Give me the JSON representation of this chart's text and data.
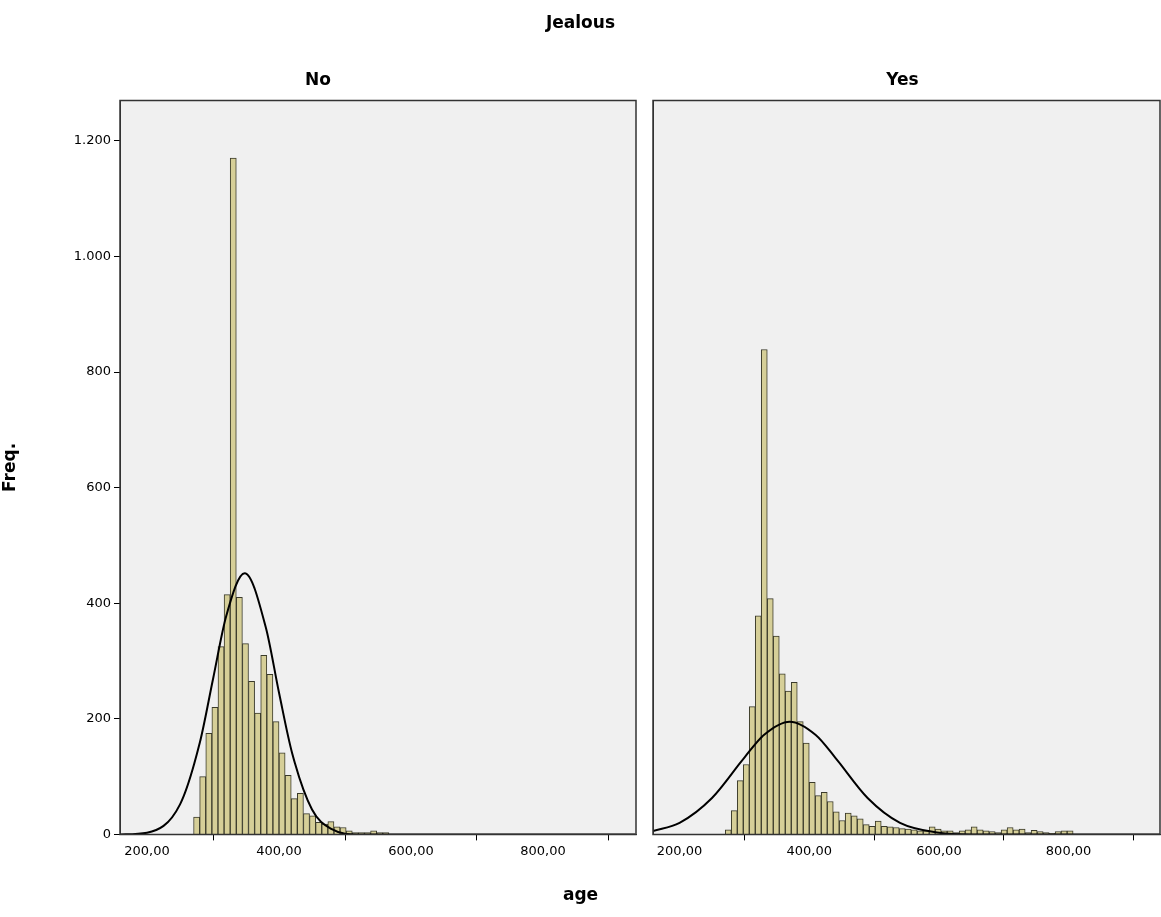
{
  "chart_data": [
    {
      "type": "histogram",
      "title": "No",
      "xlabel": "age",
      "ylabel": "Freq.",
      "annotations": [
        "Jealous"
      ],
      "bins": [
        270.5,
        279.75,
        289,
        298.25,
        307.5,
        316.75,
        326,
        335.25,
        344.5,
        353.75,
        363,
        372.25,
        381.5,
        390.75,
        400,
        409.25,
        418.5,
        427.75,
        437,
        446.25,
        455.5,
        464.75,
        474,
        483.25,
        492.5,
        501.75,
        511,
        520.25,
        529.5,
        538.75,
        548,
        557.25,
        566.5,
        575.75,
        585,
        594.25,
        603.5,
        612.75,
        622,
        631.25,
        640.5,
        649.75,
        659,
        668.25,
        677.5,
        686.75,
        696,
        705.25,
        714.5,
        723.75,
        733,
        742.25,
        751.5,
        760.75,
        770,
        779.25,
        788.5,
        797.75,
        807
      ],
      "series": [
        {
          "type": "histogram",
          "color": "#d6cf98",
          "values": [
            30,
            100,
            175,
            220,
            325,
            415,
            1170,
            410,
            330,
            265,
            210,
            310,
            277,
            195,
            141,
            102,
            62,
            71,
            36,
            32,
            21,
            18,
            22,
            13,
            12,
            6,
            3,
            3,
            3,
            6,
            3,
            3,
            null,
            0,
            0,
            0,
            0,
            0,
            0,
            0,
            0,
            0,
            0,
            0,
            0,
            0,
            null,
            null,
            0,
            null,
            0,
            0,
            0,
            0,
            0,
            0,
            0,
            0
          ]
        },
        {
          "type": "line",
          "color": "#000000",
          "x": [
            160,
            200,
            250,
            280,
            300,
            320,
            348,
            380,
            400,
            420,
            450,
            480,
            520,
            600,
            940
          ],
          "values": [
            0,
            3,
            52,
            159,
            269,
            378,
            452,
            358,
            245,
            140,
            43,
            9,
            0,
            0,
            0
          ]
        }
      ],
      "xlim": [
        159,
        941
      ],
      "ylim": [
        0,
        1270
      ],
      "xticks": [
        {
          "value": 200,
          "label": "200,00"
        },
        {
          "value": 400,
          "label": "400,00"
        },
        {
          "value": 600,
          "label": "600,00"
        },
        {
          "value": 800,
          "label": "800,00"
        }
      ],
      "yticks": [
        0,
        200,
        400,
        600,
        800,
        {
          "value": 1000,
          "label": "1.000"
        },
        {
          "value": 1200,
          "label": "1.200"
        }
      ],
      "marker": "none",
      "grid": false,
      "legend": false
    },
    {
      "type": "histogram",
      "title": "Yes",
      "bins": [
        270.5,
        279.75,
        289,
        298.25,
        307.5,
        316.75,
        326,
        335.25,
        344.5,
        353.75,
        363,
        372.25,
        381.5,
        390.75,
        400,
        409.25,
        418.5,
        427.75,
        437,
        446.25,
        455.5,
        464.75,
        474,
        483.25,
        492.5,
        501.75,
        511,
        520.25,
        529.5,
        538.75,
        548,
        557.25,
        566.5,
        575.75,
        585,
        594.25,
        603.5,
        612.75,
        622,
        631.25,
        640.5,
        649.75,
        659,
        668.25,
        677.5,
        686.75,
        696,
        705.25,
        714.5,
        723.75,
        733,
        742.25,
        751.5,
        760.75,
        770,
        779.25,
        788.5,
        797.75,
        807
      ],
      "series": [
        {
          "type": "histogram",
          "color": "#d6cf98",
          "values": [
            8,
            41,
            93,
            121,
            221,
            378,
            839,
            408,
            343,
            278,
            248,
            263,
            195,
            158,
            90,
            67,
            73,
            57,
            39,
            24,
            37,
            32,
            27,
            17,
            14,
            23,
            14,
            13,
            12,
            10,
            9,
            8,
            6,
            6,
            13,
            9,
            6,
            6,
            3,
            6,
            8,
            13,
            8,
            6,
            5,
            3,
            8,
            12,
            8,
            9,
            3,
            7,
            5,
            3,
            2,
            5,
            6,
            6
          ]
        },
        {
          "type": "line",
          "color": "#000000",
          "x": [
            159,
            200,
            250,
            300,
            330,
            370,
            410,
            440,
            490,
            540,
            600,
            650,
            941
          ],
          "values": [
            6,
            20,
            63,
            133,
            172,
            195,
            172,
            133,
            63,
            20,
            3,
            0,
            0
          ]
        }
      ],
      "xlim": [
        159,
        941
      ],
      "ylim": [
        0,
        1270
      ],
      "xticks": [
        {
          "value": 200,
          "label": "200,00"
        },
        {
          "value": 400,
          "label": "400,00"
        },
        {
          "value": 600,
          "label": "600,00"
        },
        {
          "value": 800,
          "label": "800,00"
        }
      ],
      "tick_labels": "x",
      "marker": "none",
      "grid": false,
      "legend": false
    }
  ]
}
